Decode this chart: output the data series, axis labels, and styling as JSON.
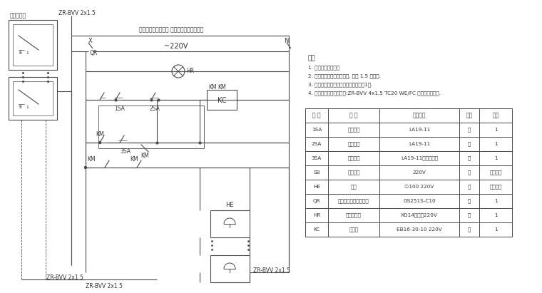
{
  "bg_color": "#ffffff",
  "line_color": "#4a4a4a",
  "notes_title": "说明",
  "notes": [
    "1. 增加火交直警铃盒",
    "2. 控制箱离出水泵控制箱外, 距地 1.5 米明敷.",
    "3. 此泵控制及警铃在每个消火栓内各装1个.",
    "4. 警铃及线采用阻燃线缆:ZR-BVV 4x1.5 TC20 WE/FC 采用防尘管敷设."
  ],
  "table_headers": [
    "符 号",
    "名 称",
    "型号规格",
    "单位",
    "数量"
  ],
  "table_rows": [
    [
      "1SA",
      "停止按钮",
      "LA19-11",
      "个",
      "1"
    ],
    [
      "2SA",
      "启动按钮",
      "LA19-11",
      "个",
      "1"
    ],
    [
      "3SA",
      "消音按钮",
      "LA19-11（带腰断）",
      "个",
      "1"
    ],
    [
      "SB",
      "旋转按钮",
      "220V",
      "个",
      "同消火栓"
    ],
    [
      "HE",
      "警铃",
      "∅100 220V",
      "个",
      "同消火栓"
    ],
    [
      "QR",
      "断路器（带漏电保护）",
      "GS251S-C10",
      "个",
      "1"
    ],
    [
      "HR",
      "电源指示灯",
      "XD14（红）220V",
      "个",
      "1"
    ],
    [
      "KC",
      "接触器",
      "EB16-30-10 220V",
      "个",
      "1"
    ]
  ],
  "cable_top": "ZR-BVV 2x1.5",
  "cable_bot_left1": "ZR-BVV 2x1.5",
  "cable_bot_left2": "ZR-BVV 2x1.5",
  "cable_bot_right": "ZR-BVV 2x1.5",
  "voltage_label": "~220V",
  "x_label": "X",
  "n_label": "N",
  "top_label": "每门、楼梯、楼梯间 音号灯及警铃门上安装",
  "panel_label": "说明报警柜"
}
